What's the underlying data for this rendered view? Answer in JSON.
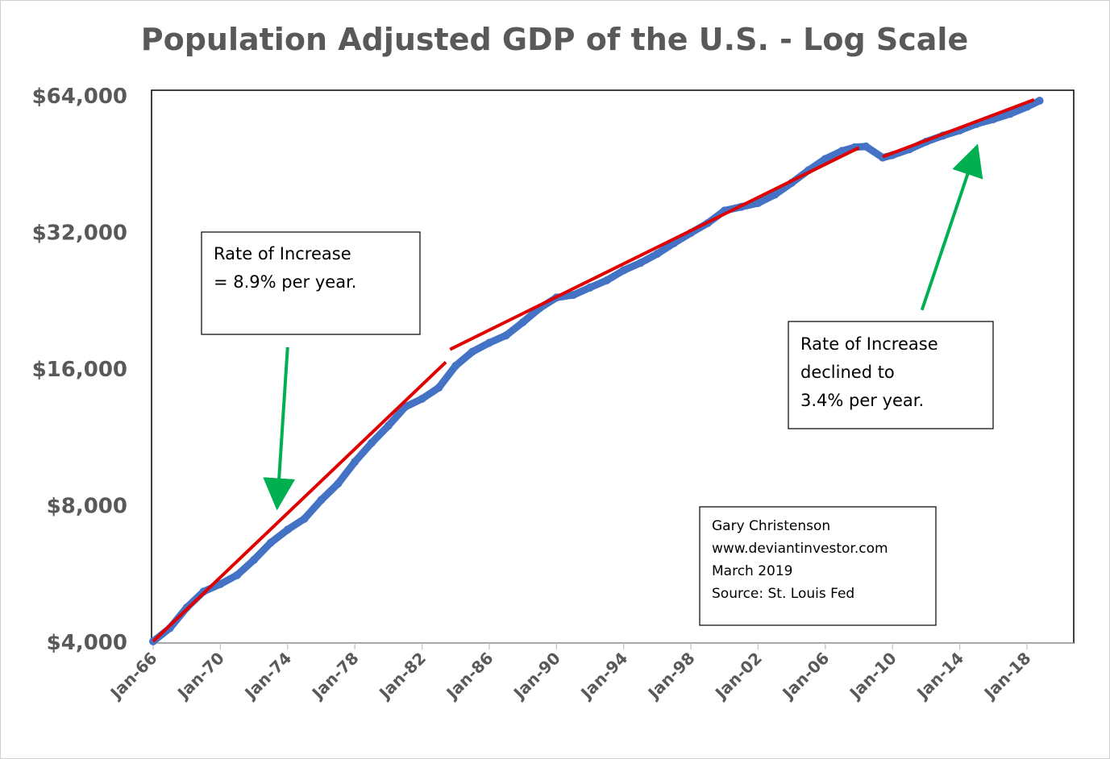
{
  "chart_data": {
    "type": "line",
    "title": "Population Adjusted GDP of the U.S. - Log Scale",
    "xlabel": "",
    "ylabel": "",
    "y_scale": "log2",
    "ylim": [
      4000,
      64000
    ],
    "xlim": [
      "1966-01",
      "2019-01"
    ],
    "grid": false,
    "yticks": [
      {
        "value": 4000,
        "label": "$4,000"
      },
      {
        "value": 8000,
        "label": "$8,000"
      },
      {
        "value": 16000,
        "label": "$16,000"
      },
      {
        "value": 32000,
        "label": "$32,000"
      },
      {
        "value": 64000,
        "label": "$64,000"
      }
    ],
    "xticks": [
      {
        "value": "1966-01",
        "label": "Jan-66"
      },
      {
        "value": "1970-01",
        "label": "Jan-70"
      },
      {
        "value": "1974-01",
        "label": "Jan-74"
      },
      {
        "value": "1978-01",
        "label": "Jan-78"
      },
      {
        "value": "1982-01",
        "label": "Jan-82"
      },
      {
        "value": "1986-01",
        "label": "Jan-86"
      },
      {
        "value": "1990-01",
        "label": "Jan-90"
      },
      {
        "value": "1994-01",
        "label": "Jan-94"
      },
      {
        "value": "1998-01",
        "label": "Jan-98"
      },
      {
        "value": "2002-01",
        "label": "Jan-02"
      },
      {
        "value": "2006-01",
        "label": "Jan-06"
      },
      {
        "value": "2010-01",
        "label": "Jan-10"
      },
      {
        "value": "2014-01",
        "label": "Jan-14"
      },
      {
        "value": "2018-01",
        "label": "Jan-18"
      }
    ],
    "series": [
      {
        "color": "#4472C4",
        "marker": "circle",
        "points": [
          [
            "1966-01",
            4000
          ],
          [
            "1967-01",
            4280
          ],
          [
            "1968-01",
            4750
          ],
          [
            "1969-01",
            5150
          ],
          [
            "1970-01",
            5350
          ],
          [
            "1971-01",
            5600
          ],
          [
            "1972-01",
            6050
          ],
          [
            "1973-01",
            6600
          ],
          [
            "1974-01",
            7050
          ],
          [
            "1975-01",
            7450
          ],
          [
            "1976-01",
            8200
          ],
          [
            "1977-01",
            8900
          ],
          [
            "1978-01",
            9950
          ],
          [
            "1979-01",
            10950
          ],
          [
            "1980-01",
            11950
          ],
          [
            "1981-01",
            13150
          ],
          [
            "1982-01",
            13700
          ],
          [
            "1983-01",
            14500
          ],
          [
            "1984-01",
            16200
          ],
          [
            "1985-01",
            17400
          ],
          [
            "1986-01",
            18200
          ],
          [
            "1987-01",
            18900
          ],
          [
            "1988-01",
            20200
          ],
          [
            "1989-01",
            21700
          ],
          [
            "1990-01",
            22900
          ],
          [
            "1991-01",
            23200
          ],
          [
            "1992-01",
            24100
          ],
          [
            "1993-01",
            25000
          ],
          [
            "1994-01",
            26300
          ],
          [
            "1995-01",
            27300
          ],
          [
            "1996-01",
            28600
          ],
          [
            "1997-01",
            30200
          ],
          [
            "1998-01",
            31800
          ],
          [
            "1999-01",
            33400
          ],
          [
            "2000-01",
            35600
          ],
          [
            "2001-01",
            36300
          ],
          [
            "2002-01",
            37000
          ],
          [
            "2003-01",
            38600
          ],
          [
            "2004-01",
            41000
          ],
          [
            "2005-01",
            43700
          ],
          [
            "2006-01",
            46300
          ],
          [
            "2007-01",
            48200
          ],
          [
            "2007-10",
            49100
          ],
          [
            "2008-06",
            49300
          ],
          [
            "2009-06",
            46600
          ],
          [
            "2010-01",
            47200
          ],
          [
            "2011-01",
            48600
          ],
          [
            "2012-01",
            50500
          ],
          [
            "2013-01",
            52100
          ],
          [
            "2014-01",
            53500
          ],
          [
            "2015-01",
            55300
          ],
          [
            "2016-01",
            56600
          ],
          [
            "2017-01",
            58200
          ],
          [
            "2018-01",
            60300
          ],
          [
            "2018-10",
            62200
          ]
        ]
      }
    ],
    "trend_lines": [
      {
        "color": "#E00000",
        "from": [
          "1966-01",
          4000
        ],
        "to": [
          "1983-06",
          16500
        ]
      },
      {
        "color": "#E00000",
        "from": [
          "1983-09",
          17600
        ],
        "to": [
          "2008-01",
          49000
        ]
      },
      {
        "color": "#E00000",
        "from": [
          "2009-06",
          46800
        ],
        "to": [
          "2018-06",
          62500
        ]
      }
    ],
    "annotations": [
      {
        "lines": [
          "Rate of Increase",
          "= 8.9% per year."
        ]
      },
      {
        "lines": [
          "Rate of Increase",
          "declined to",
          "3.4% per year."
        ]
      },
      {
        "lines": [
          "Gary Christenson",
          "www.deviantinvestor.com",
          "March 2019",
          "Source: St. Louis Fed"
        ]
      }
    ],
    "arrows": [
      {
        "color": "#00B050",
        "from": [
          "1974-01",
          17800
        ],
        "to": [
          "1973-06",
          8300
        ]
      },
      {
        "color": "#00B050",
        "from": [
          "2011-10",
          21500
        ],
        "to": [
          "2014-11",
          47000
        ]
      }
    ]
  },
  "colors": {
    "series": "#4472C4",
    "trend": "#E00000",
    "arrow": "#00B050",
    "text": "#595959"
  }
}
